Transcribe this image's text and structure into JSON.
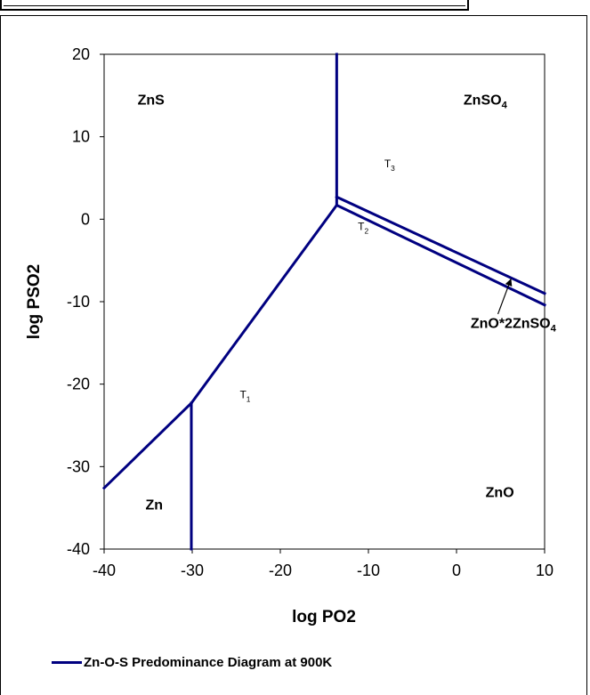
{
  "chart_data": {
    "type": "line",
    "title": "",
    "xlabel": "log PO2",
    "ylabel": "log PSO2",
    "xlim": [
      -40,
      10
    ],
    "ylim": [
      -40,
      20
    ],
    "xticks": [
      "-40",
      "-30",
      "-20",
      "-10",
      "0",
      "10"
    ],
    "yticks": [
      "20",
      "10",
      "0",
      "-10",
      "-20",
      "-30",
      "-40"
    ],
    "grid": false,
    "legend_position": "bottom-left",
    "line_color": "#000080",
    "series": [
      {
        "name": "Zn-O-S Predominance Diagram at 900K",
        "segments": [
          {
            "x": [
              -40,
              -30.1
            ],
            "y": [
              -32.6,
              -22.3
            ]
          },
          {
            "x": [
              -30.1,
              -30.1
            ],
            "y": [
              -22.3,
              -40
            ]
          },
          {
            "x": [
              -30.1,
              -13.6
            ],
            "y": [
              -22.3,
              1.7
            ]
          },
          {
            "x": [
              -13.6,
              -13.6
            ],
            "y": [
              1.7,
              20
            ]
          },
          {
            "x": [
              -13.6,
              10
            ],
            "y": [
              2.7,
              -9
            ]
          },
          {
            "x": [
              -13.6,
              10
            ],
            "y": [
              1.7,
              -10.4
            ]
          }
        ]
      }
    ],
    "regions": [
      {
        "text": "ZnS",
        "x": -36.2,
        "y": 13.9
      },
      {
        "text": "ZnSO",
        "sub": "4",
        "x": 0.8,
        "y": 13.9
      },
      {
        "text": "ZnO",
        "x": 3.3,
        "y": -33.7
      },
      {
        "text": "Zn",
        "x": -35.3,
        "y": -35.2
      }
    ],
    "annotations": [
      {
        "text": "T",
        "sub": "3",
        "x": -8.2,
        "y": 6.3
      },
      {
        "text": "T",
        "sub": "2",
        "x": -11.2,
        "y": -1.3
      },
      {
        "text": "T",
        "sub": "1",
        "x": -24.6,
        "y": -21.7
      },
      {
        "text": "ZnO*2ZnSO",
        "sub": "4",
        "x": 1.6,
        "y": -13.2
      }
    ],
    "arrow": {
      "from": [
        4.7,
        -11.5
      ],
      "to": [
        6.2,
        -7.2
      ]
    }
  }
}
